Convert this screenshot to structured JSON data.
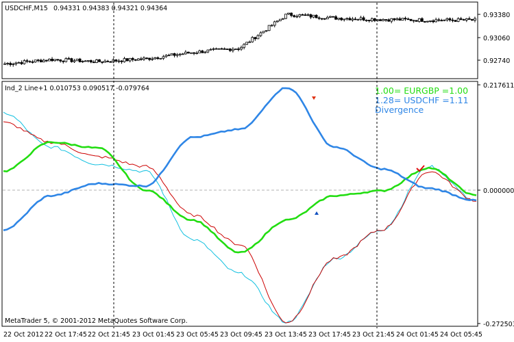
{
  "colors": {
    "background": "#ffffff",
    "frame": "#000000",
    "dotted_line": "#000000",
    "candles": "#000000",
    "eurgbp_line": "#22dd11",
    "usdchf_line": "#2f86e6",
    "thin_red": "#cc0000",
    "thin_cyan": "#11c0e0",
    "zero_line": "#b0b0b0",
    "arrow_red": "#e03010",
    "arrow_blue": "#1050c0",
    "check_red": "#dd1010"
  },
  "price_panel": {
    "title": "USDCHF,M15",
    "ohlc": "0.94331 0.94383 0.94321 0.94364",
    "ticks": [
      "0.93380",
      "0.93060",
      "0.92740"
    ]
  },
  "indicator_panel": {
    "title": "Ind_2 Line+1 0.010753 0.090517 -0.079764",
    "ticks": [
      "0.217611",
      "0.000000",
      "-0.272503"
    ],
    "legend": {
      "line1": "1.00= EURGBP =1.00",
      "line2": "1.28= USDCHF =1.11",
      "line3": "Divergence"
    },
    "copyright": "MetaTrader 5, © 2001-2012 MetaQuotes Software Corp."
  },
  "time_axis": [
    "22 Oct 2012",
    "22 Oct 17:45",
    "22 Oct 21:45",
    "23 Oct 01:45",
    "23 Oct 05:45",
    "23 Oct 09:45",
    "23 Oct 13:45",
    "23 Oct 17:45",
    "23 Oct 21:45",
    "24 Oct 01:45",
    "24 Oct 05:45"
  ],
  "chart_data": [
    {
      "type": "candlestick",
      "title": "USDCHF,M15",
      "ylim": [
        0.9255,
        0.9355
      ],
      "yticks": [
        0.9338,
        0.9306,
        0.9274
      ],
      "x": [
        "22 Oct 2012",
        "22 Oct 17:45",
        "22 Oct 21:45",
        "23 Oct 01:45",
        "23 Oct 05:45",
        "23 Oct 09:45",
        "23 Oct 13:45",
        "23 Oct 17:45",
        "23 Oct 21:45",
        "24 Oct 01:45",
        "24 Oct 05:45"
      ],
      "close_approx": [
        0.9269,
        0.9275,
        0.9272,
        0.9276,
        0.9285,
        0.9291,
        0.9338,
        0.9333,
        0.9331,
        0.933,
        0.933
      ]
    },
    {
      "type": "line",
      "title": "Ind_2 Line+1 0.010753 0.090517 -0.079764",
      "ylim": [
        -0.272503,
        0.217611
      ],
      "yticks": [
        0.217611,
        0.0,
        -0.272503
      ],
      "x": [
        "22 Oct 2012",
        "22 Oct 17:45",
        "22 Oct 21:45",
        "23 Oct 01:45",
        "23 Oct 05:45",
        "23 Oct 09:45",
        "23 Oct 13:45",
        "23 Oct 17:45",
        "23 Oct 21:45",
        "24 Oct 01:45",
        "24 Oct 05:45"
      ],
      "series": [
        {
          "name": "1.00= EURGBP =1.00",
          "color": "#22dd11",
          "values": [
            0.04,
            0.1,
            0.088,
            0.002,
            -0.06,
            -0.127,
            -0.06,
            -0.01,
            0.0,
            0.047,
            -0.01
          ]
        },
        {
          "name": "1.28= USDCHF =1.11",
          "color": "#2f86e6",
          "values": [
            -0.08,
            -0.01,
            0.015,
            0.01,
            0.11,
            0.126,
            0.212,
            0.09,
            0.045,
            0.005,
            -0.02
          ]
        },
        {
          "values": [
            0.14,
            0.1,
            0.07,
            0.05,
            -0.05,
            -0.11,
            -0.27,
            -0.14,
            -0.08,
            0.04,
            -0.02
          ]
        },
        {
          "values": [
            0.16,
            0.09,
            0.055,
            0.04,
            -0.1,
            -0.17,
            -0.27,
            -0.14,
            -0.08,
            0.05,
            -0.02
          ]
        }
      ]
    }
  ]
}
